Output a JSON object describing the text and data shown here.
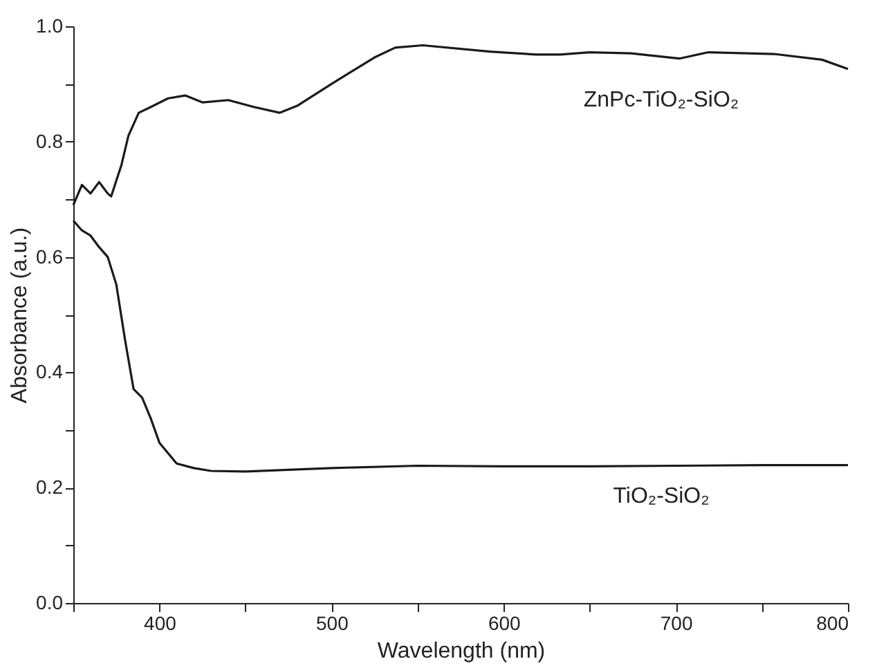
{
  "chart_data": {
    "type": "line",
    "xlabel": "Wavelength (nm)",
    "ylabel": "Absorbance (a.u.)",
    "xlim": [
      350,
      800
    ],
    "ylim": [
      0,
      1.0
    ],
    "xticks": [
      {
        "value": 350,
        "label": null
      },
      400,
      {
        "value": 450,
        "label": null
      },
      500,
      {
        "value": 550,
        "label": null
      },
      600,
      {
        "value": 650,
        "label": null
      },
      700,
      {
        "value": 750,
        "label": null
      },
      800
    ],
    "yticks": [
      {
        "value": 0,
        "label": "0.0"
      },
      {
        "value": 0.1,
        "label": null
      },
      {
        "value": 0.2,
        "label": "0.2"
      },
      {
        "value": 0.3,
        "label": null
      },
      {
        "value": 0.4,
        "label": "0.4"
      },
      {
        "value": 0.5,
        "label": null
      },
      {
        "value": 0.6,
        "label": "0.6"
      },
      {
        "value": 0.7,
        "label": null
      },
      {
        "value": 0.8,
        "label": "0.8"
      },
      {
        "value": 0.9,
        "label": null
      },
      {
        "value": 1.0,
        "label": "1.0"
      }
    ],
    "grid": false,
    "marker": "none",
    "line_style": "solid",
    "series": [
      {
        "name": "ZnPc-TiO₂-SiO₂",
        "color": "#1a1a1a",
        "x": [
          350,
          355,
          360,
          365,
          370,
          372,
          378,
          382,
          388,
          395,
          405,
          415,
          425,
          440,
          455,
          470,
          480,
          500,
          525,
          537,
          553,
          592,
          619,
          633,
          650,
          674,
          702,
          719,
          757,
          785,
          800
        ],
        "values": [
          0.69,
          0.725,
          0.71,
          0.73,
          0.71,
          0.705,
          0.76,
          0.81,
          0.85,
          0.86,
          0.875,
          0.88,
          0.868,
          0.872,
          0.86,
          0.85,
          0.862,
          0.9,
          0.946,
          0.963,
          0.967,
          0.956,
          0.951,
          0.951,
          0.955,
          0.953,
          0.944,
          0.955,
          0.952,
          0.942,
          0.926
        ]
      },
      {
        "name": "TiO₂-SiO₂",
        "color": "#1a1a1a",
        "x": [
          350,
          355,
          360,
          365,
          370,
          375,
          380,
          385,
          390,
          395,
          400,
          410,
          420,
          430,
          450,
          500,
          550,
          600,
          650,
          700,
          750,
          800
        ],
        "values": [
          0.663,
          0.646,
          0.637,
          0.617,
          0.6,
          0.552,
          0.457,
          0.371,
          0.356,
          0.32,
          0.278,
          0.242,
          0.234,
          0.229,
          0.228,
          0.234,
          0.238,
          0.237,
          0.237,
          0.238,
          0.239,
          0.239
        ]
      }
    ]
  }
}
